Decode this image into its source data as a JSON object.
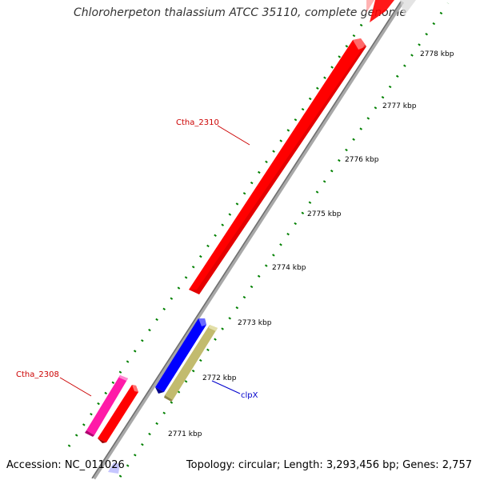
{
  "title": "Chloroherpeton thalassium ATCC 35110, complete genome",
  "footer": {
    "accession": "Accession: NC_011026",
    "summary": "Topology: circular; Length: 3,293,456 bp; Genes: 2,757"
  },
  "ticks": [
    {
      "label": "2771 kbp"
    },
    {
      "label": "2772 kbp"
    },
    {
      "label": "2773 kbp"
    },
    {
      "label": "2774 kbp"
    },
    {
      "label": "2775 kbp"
    },
    {
      "label": "2776 kbp"
    },
    {
      "label": "2777 kbp"
    },
    {
      "label": "2778 kbp"
    }
  ],
  "genes": [
    {
      "name": "Ctha_2310",
      "color": "#ff0000",
      "label_color": "#cc0000"
    },
    {
      "name": "Ctha_2308",
      "color": "#ff1aa8",
      "label_color": "#cc0000"
    },
    {
      "name": "clpX",
      "color": "#0000ff",
      "label_color": "#0000cc"
    }
  ],
  "colors": {
    "backbone": "#8c8c8c",
    "minor_tick": "#008000",
    "red_gene": "#ff0000",
    "blue_gene": "#0000ff",
    "olive_gene": "#c2bb6e"
  }
}
